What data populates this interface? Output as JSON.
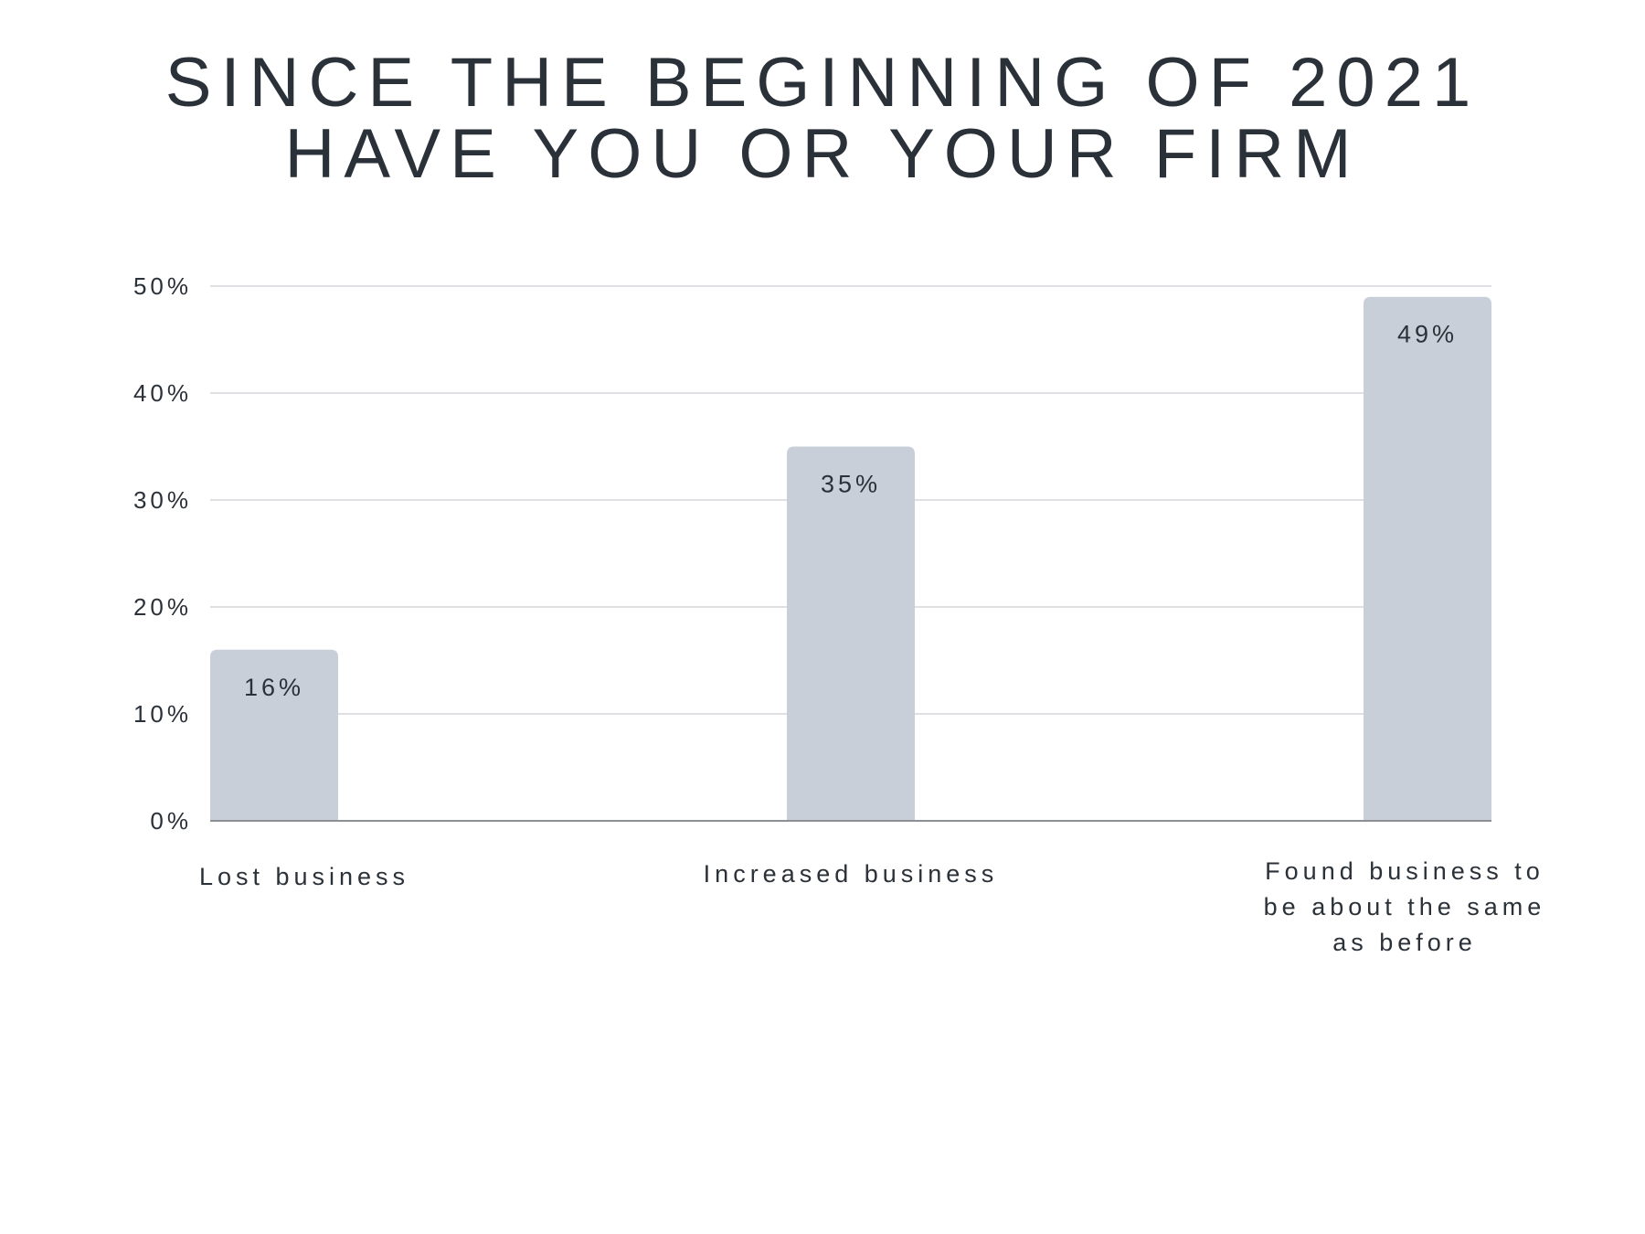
{
  "chart_data": {
    "type": "bar",
    "title_lines": [
      "SINCE THE BEGINNING OF 2021",
      "HAVE YOU OR YOUR FIRM"
    ],
    "categories": [
      [
        "Lost business"
      ],
      [
        "Increased business"
      ],
      [
        "Found business to",
        "be about the same",
        "as before"
      ]
    ],
    "values": [
      16,
      35,
      49
    ],
    "data_labels": [
      "16%",
      "35%",
      "49%"
    ],
    "ylim": [
      0,
      50
    ],
    "yticks": [
      0,
      10,
      20,
      30,
      40,
      50
    ],
    "ytick_labels": [
      "0%",
      "10%",
      "20%",
      "30%",
      "40%",
      "50%"
    ],
    "grid": true,
    "legend": "none",
    "colors": {
      "bar": "#c9cfd9",
      "grid": "#d4d6da",
      "axis": "#8c9096",
      "text": "#2b3138"
    }
  }
}
